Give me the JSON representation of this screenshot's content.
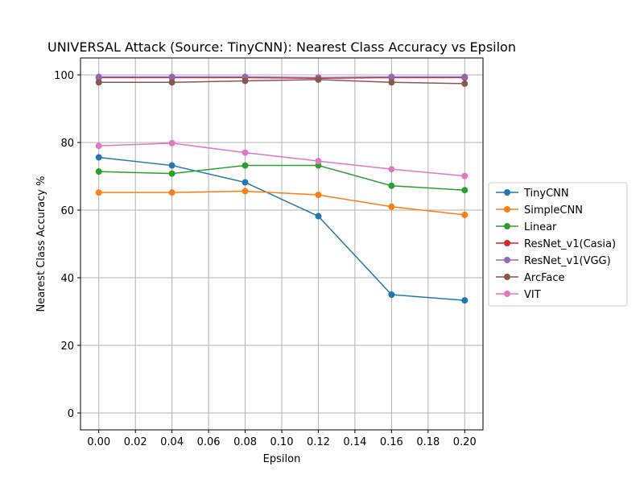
{
  "chart_data": {
    "type": "line",
    "title": "UNIVERSAL Attack (Source: TinyCNN): Nearest Class Accuracy vs Epsilon",
    "xlabel": "Epsilon",
    "ylabel": "Nearest Class Accuracy %",
    "xlim": [
      -0.01,
      0.21
    ],
    "ylim": [
      -5,
      105
    ],
    "xticks": [
      0.0,
      0.02,
      0.04,
      0.06,
      0.08,
      0.1,
      0.12,
      0.14,
      0.16,
      0.18,
      0.2
    ],
    "xtick_labels": [
      "0.00",
      "0.02",
      "0.04",
      "0.06",
      "0.08",
      "0.10",
      "0.12",
      "0.14",
      "0.16",
      "0.18",
      "0.20"
    ],
    "yticks": [
      0,
      20,
      40,
      60,
      80,
      100
    ],
    "ytick_labels": [
      "0",
      "20",
      "40",
      "60",
      "80",
      "100"
    ],
    "grid": true,
    "legend_position": "center-right-outside",
    "x": [
      0.0,
      0.04,
      0.08,
      0.12,
      0.16,
      0.2
    ],
    "series": [
      {
        "name": "TinyCNN",
        "color": "#1f77b4",
        "values": [
          75.6,
          73.2,
          68.2,
          58.2,
          35.0,
          33.3
        ]
      },
      {
        "name": "SimpleCNN",
        "color": "#ff7f0e",
        "values": [
          65.2,
          65.2,
          65.6,
          64.5,
          61.0,
          58.6
        ]
      },
      {
        "name": "Linear",
        "color": "#2ca02c",
        "values": [
          71.4,
          70.8,
          73.2,
          73.2,
          67.2,
          65.9
        ]
      },
      {
        "name": "ResNet_v1(Casia)",
        "color": "#d62728",
        "values": [
          99.2,
          99.2,
          99.2,
          99.0,
          99.2,
          99.2
        ]
      },
      {
        "name": "ResNet_v1(VGG)",
        "color": "#9467bd",
        "values": [
          99.4,
          99.4,
          99.4,
          99.2,
          99.4,
          99.4
        ]
      },
      {
        "name": "ArcFace",
        "color": "#8c564b",
        "values": [
          97.8,
          97.8,
          98.2,
          98.6,
          97.8,
          97.4
        ]
      },
      {
        "name": "VIT",
        "color": "#e377c2",
        "values": [
          79.0,
          79.8,
          77.0,
          74.5,
          72.1,
          70.1
        ]
      }
    ]
  }
}
